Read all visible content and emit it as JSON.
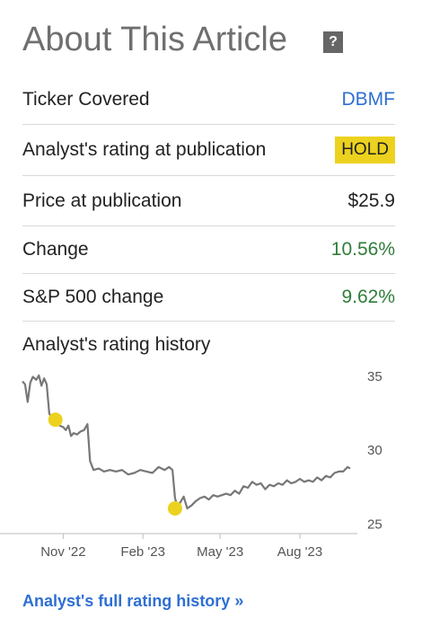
{
  "header": {
    "title": "About This Article",
    "help_icon": "?"
  },
  "rows": {
    "ticker": {
      "label": "Ticker Covered",
      "value": "DBMF"
    },
    "rating": {
      "label": "Analyst's rating at publication",
      "value": "HOLD"
    },
    "price": {
      "label": "Price at publication",
      "value": "$25.9"
    },
    "change": {
      "label": "Change",
      "value": "10.56%"
    },
    "sp500": {
      "label": "S&P 500 change",
      "value": "9.62%"
    }
  },
  "history": {
    "label": "Analyst's rating history"
  },
  "footer": {
    "link": "Analyst's full rating history »"
  },
  "colors": {
    "link": "#2e6fd4",
    "positive": "#2f7d3a",
    "hold": "#ecd21e",
    "line": "#777777"
  },
  "chart_data": {
    "type": "line",
    "x_tick_labels": [
      "Nov '22",
      "Feb '23",
      "May '23",
      "Aug '23"
    ],
    "y_ticks": [
      25,
      30,
      35
    ],
    "ylim": [
      24.3,
      35.6
    ],
    "x_start": "2022-09-15",
    "x_end": "2023-09-28",
    "series": [
      {
        "values": [
          [
            "2022-09-15",
            34.6
          ],
          [
            "2022-09-18",
            34.4
          ],
          [
            "2022-09-21",
            33.2
          ],
          [
            "2022-09-24",
            34.5
          ],
          [
            "2022-09-27",
            34.9
          ],
          [
            "2022-10-01",
            34.7
          ],
          [
            "2022-10-04",
            35.0
          ],
          [
            "2022-10-07",
            34.3
          ],
          [
            "2022-10-10",
            34.8
          ],
          [
            "2022-10-13",
            34.4
          ],
          [
            "2022-10-16",
            32.4
          ],
          [
            "2022-10-19",
            32.2
          ],
          [
            "2022-10-22",
            32.1
          ],
          [
            "2022-10-25",
            32.0
          ],
          [
            "2022-10-28",
            31.6
          ],
          [
            "2022-11-01",
            31.5
          ],
          [
            "2022-11-04",
            31.3
          ],
          [
            "2022-11-07",
            31.6
          ],
          [
            "2022-11-10",
            30.9
          ],
          [
            "2022-11-13",
            31.1
          ],
          [
            "2022-11-17",
            31.0
          ],
          [
            "2022-11-21",
            31.2
          ],
          [
            "2022-11-25",
            31.3
          ],
          [
            "2022-11-29",
            31.7
          ],
          [
            "2022-12-02",
            29.2
          ],
          [
            "2022-12-06",
            28.6
          ],
          [
            "2022-12-12",
            28.7
          ],
          [
            "2022-12-18",
            28.5
          ],
          [
            "2022-12-25",
            28.6
          ],
          [
            "2023-01-01",
            28.5
          ],
          [
            "2023-01-08",
            28.6
          ],
          [
            "2023-01-15",
            28.3
          ],
          [
            "2023-01-22",
            28.4
          ],
          [
            "2023-01-29",
            28.6
          ],
          [
            "2023-02-05",
            28.5
          ],
          [
            "2023-02-12",
            28.4
          ],
          [
            "2023-02-19",
            28.8
          ],
          [
            "2023-02-26",
            28.6
          ],
          [
            "2023-03-03",
            28.8
          ],
          [
            "2023-03-07",
            28.6
          ],
          [
            "2023-03-10",
            26.7
          ],
          [
            "2023-03-13",
            26.1
          ],
          [
            "2023-03-16",
            26.4
          ],
          [
            "2023-03-20",
            26.8
          ],
          [
            "2023-03-24",
            26.0
          ],
          [
            "2023-03-29",
            26.2
          ],
          [
            "2023-04-03",
            26.5
          ],
          [
            "2023-04-08",
            26.7
          ],
          [
            "2023-04-13",
            26.8
          ],
          [
            "2023-04-18",
            26.6
          ],
          [
            "2023-04-23",
            26.9
          ],
          [
            "2023-04-28",
            26.8
          ],
          [
            "2023-05-03",
            26.9
          ],
          [
            "2023-05-08",
            27.0
          ],
          [
            "2023-05-13",
            26.9
          ],
          [
            "2023-05-18",
            27.2
          ],
          [
            "2023-05-23",
            27.0
          ],
          [
            "2023-05-28",
            27.5
          ],
          [
            "2023-06-02",
            27.4
          ],
          [
            "2023-06-07",
            27.8
          ],
          [
            "2023-06-12",
            27.6
          ],
          [
            "2023-06-17",
            27.7
          ],
          [
            "2023-06-22",
            27.3
          ],
          [
            "2023-06-27",
            27.6
          ],
          [
            "2023-07-02",
            27.5
          ],
          [
            "2023-07-07",
            27.7
          ],
          [
            "2023-07-12",
            27.6
          ],
          [
            "2023-07-17",
            27.9
          ],
          [
            "2023-07-22",
            27.7
          ],
          [
            "2023-07-27",
            27.8
          ],
          [
            "2023-08-01",
            28.0
          ],
          [
            "2023-08-06",
            27.8
          ],
          [
            "2023-08-11",
            27.9
          ],
          [
            "2023-08-16",
            27.8
          ],
          [
            "2023-08-21",
            28.1
          ],
          [
            "2023-08-26",
            27.9
          ],
          [
            "2023-08-31",
            28.2
          ],
          [
            "2023-09-05",
            28.1
          ],
          [
            "2023-09-10",
            28.4
          ],
          [
            "2023-09-15",
            28.5
          ],
          [
            "2023-09-20",
            28.5
          ],
          [
            "2023-09-25",
            28.8
          ],
          [
            "2023-09-28",
            28.7
          ]
        ]
      }
    ],
    "rating_markers": [
      {
        "date": "2022-10-23",
        "value": 32.0
      },
      {
        "date": "2023-03-10",
        "value": 26.0
      }
    ]
  }
}
